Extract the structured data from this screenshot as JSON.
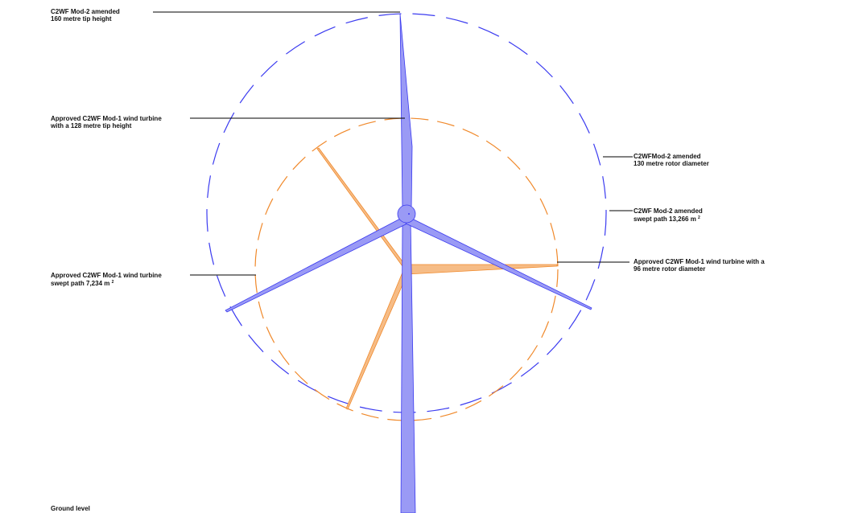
{
  "labels": {
    "mod2_tip": {
      "line1": "C2WF Mod-2 amended",
      "line2": "160 metre tip height"
    },
    "mod1_tip": {
      "line1": "Approved C2WF Mod-1 wind turbine",
      "line2": "with a 128 metre tip height"
    },
    "mod2_rotor": {
      "line1": "C2WFMod-2 amended",
      "line2": "130 metre rotor diameter"
    },
    "mod2_swept": {
      "line1": "C2WF Mod-2 amended",
      "line2": "swept path 13,266 m",
      "sup": "2"
    },
    "mod1_rotor": {
      "line1": "Approved C2WF Mod-1 wind turbine with a",
      "line2": "96 metre rotor diameter"
    },
    "mod1_swept": {
      "line1": "Approved C2WF Mod-1 wind turbine",
      "line2": "swept path 7,234 m",
      "sup": "2"
    },
    "ground": {
      "line1": "Ground level"
    }
  },
  "colors": {
    "mod2_stroke": "#3b3bf0",
    "mod2_fill": "#9a9af5",
    "mod1_stroke": "#f0892b",
    "mod1_fill": "#f6bc86",
    "leader": "#000000"
  }
}
